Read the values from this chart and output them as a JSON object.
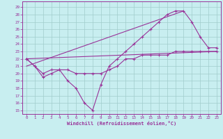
{
  "xlabel": "Windchill (Refroidissement éolien,°C)",
  "background": "#c8eef0",
  "line_color": "#993399",
  "grid_color": "#a0cccc",
  "xlim": [
    -0.5,
    23.5
  ],
  "ylim": [
    14.5,
    29.8
  ],
  "xticks": [
    0,
    1,
    2,
    3,
    4,
    5,
    6,
    7,
    8,
    9,
    10,
    11,
    12,
    13,
    14,
    15,
    16,
    17,
    18,
    19,
    20,
    21,
    22,
    23
  ],
  "yticks": [
    15,
    16,
    17,
    18,
    19,
    20,
    21,
    22,
    23,
    24,
    25,
    26,
    27,
    28,
    29
  ],
  "curve1_x": [
    0,
    1,
    2,
    3,
    4,
    5,
    6,
    7,
    8,
    9,
    10,
    11,
    12,
    13,
    14,
    15,
    16,
    17,
    18,
    19,
    20,
    21,
    22,
    23
  ],
  "curve1_y": [
    22,
    21,
    19.5,
    20,
    20.5,
    19,
    18,
    16,
    15,
    18.5,
    21,
    22,
    23,
    24,
    25,
    26,
    27,
    28,
    28.5,
    28.5,
    27,
    25,
    23.5,
    23.5
  ],
  "curve2_x": [
    0,
    1,
    2,
    3,
    4,
    5,
    6,
    7,
    8,
    9,
    10,
    11,
    12,
    13,
    14,
    15,
    16,
    17,
    18,
    19,
    20,
    21,
    22,
    23
  ],
  "curve2_y": [
    22,
    21,
    20,
    20.5,
    20.5,
    20.5,
    20,
    20,
    20,
    20,
    20.5,
    21,
    22,
    22,
    22.5,
    22.5,
    22.5,
    22.5,
    23,
    23,
    23,
    23,
    23,
    23
  ],
  "line3_x": [
    0,
    23
  ],
  "line3_y": [
    22,
    23
  ],
  "line4_x": [
    0,
    19
  ],
  "line4_y": [
    21,
    28.5
  ]
}
